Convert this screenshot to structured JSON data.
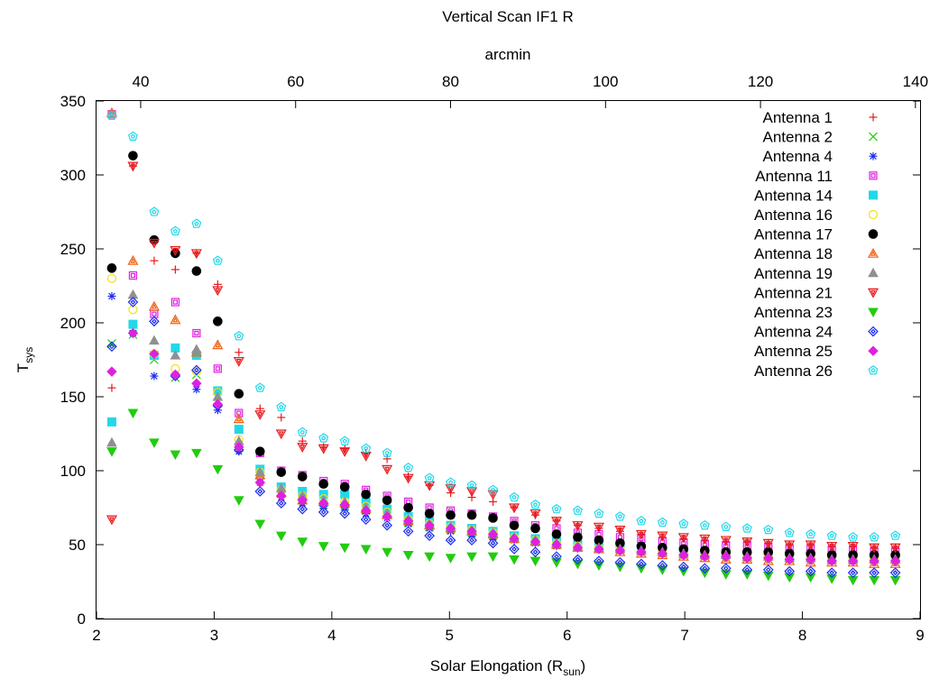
{
  "chart_data": {
    "type": "scatter",
    "title": "Vertical Scan IF1 R",
    "x2label": "arcmin",
    "xlabel_main": "Solar Elongation (R",
    "xlabel_sub": "sun",
    "xlabel_close": ")",
    "ylabel_main": "T",
    "ylabel_sub": "sys",
    "xlim": [
      2,
      9
    ],
    "ylim": [
      0,
      350
    ],
    "x2lim": [
      34.3,
      140.6
    ],
    "xticks": [
      2,
      3,
      4,
      5,
      6,
      7,
      8,
      9
    ],
    "yticks": [
      0,
      50,
      100,
      150,
      200,
      250,
      300,
      350
    ],
    "x2ticks": [
      40,
      60,
      80,
      100,
      120,
      140
    ],
    "grid": false,
    "legend_position": "top-right",
    "x": [
      2.13,
      2.31,
      2.49,
      2.67,
      2.85,
      3.03,
      3.21,
      3.39,
      3.57,
      3.75,
      3.93,
      4.11,
      4.29,
      4.47,
      4.65,
      4.83,
      5.01,
      5.19,
      5.37,
      5.55,
      5.73,
      5.91,
      6.09,
      6.27,
      6.45,
      6.63,
      6.81,
      6.99,
      7.17,
      7.35,
      7.53,
      7.71,
      7.89,
      8.07,
      8.25,
      8.43,
      8.61,
      8.79
    ],
    "series": [
      {
        "name": "Antenna 1",
        "color": "#e8191d",
        "marker": "plus",
        "values": [
          156,
          306,
          242,
          236,
          247,
          226,
          180,
          142,
          136,
          120,
          116,
          115,
          112,
          108,
          96,
          90,
          85,
          82,
          79,
          75,
          70,
          66,
          63,
          61,
          59,
          57,
          55,
          54,
          53,
          52,
          52,
          51,
          50,
          50,
          49,
          49,
          48,
          48
        ]
      },
      {
        "name": "Antenna 2",
        "color": "#22cc11",
        "marker": "x",
        "values": [
          186,
          192,
          175,
          163,
          165,
          150,
          116,
          97,
          85,
          80,
          77,
          76,
          73,
          71,
          65,
          62,
          60,
          58,
          56,
          54,
          52,
          50,
          49,
          48,
          47,
          46,
          45,
          44,
          43,
          43,
          42,
          42,
          41,
          41,
          40,
          40,
          40,
          40
        ]
      },
      {
        "name": "Antenna 4",
        "color": "#1a2cf0",
        "marker": "asterisk",
        "values": [
          218,
          193,
          164,
          165,
          155,
          141,
          113,
          92,
          82,
          78,
          76,
          75,
          71,
          68,
          64,
          61,
          59,
          57,
          55,
          53,
          51,
          49,
          48,
          47,
          46,
          45,
          44,
          43,
          42,
          42,
          41,
          41,
          40,
          40,
          39,
          39,
          39,
          39
        ]
      },
      {
        "name": "Antenna 11",
        "color": "#e020e0",
        "marker": "square-open",
        "values": [
          341,
          232,
          206,
          214,
          193,
          169,
          139,
          112,
          100,
          97,
          93,
          91,
          87,
          83,
          79,
          75,
          73,
          71,
          69,
          66,
          63,
          61,
          58,
          57,
          55,
          54,
          52,
          51,
          50,
          49,
          49,
          48,
          47,
          47,
          46,
          46,
          45,
          45
        ]
      },
      {
        "name": "Antenna 14",
        "color": "#22d8e8",
        "marker": "square-filled",
        "values": [
          133,
          199,
          178,
          183,
          178,
          154,
          128,
          101,
          89,
          86,
          84,
          84,
          79,
          74,
          69,
          66,
          63,
          61,
          59,
          56,
          54,
          52,
          50,
          49,
          48,
          47,
          46,
          45,
          44,
          44,
          43,
          43,
          42,
          42,
          41,
          41,
          41,
          41
        ]
      },
      {
        "name": "Antenna 16",
        "color": "#f2e01a",
        "marker": "circle-open",
        "values": [
          230,
          209,
          179,
          169,
          167,
          153,
          121,
          99,
          87,
          83,
          81,
          79,
          76,
          72,
          67,
          64,
          62,
          60,
          58,
          55,
          53,
          51,
          49,
          48,
          47,
          46,
          45,
          44,
          43,
          43,
          42,
          42,
          41,
          41,
          41,
          40,
          40,
          40
        ]
      },
      {
        "name": "Antenna 17",
        "color": "#000000",
        "marker": "circle-filled",
        "values": [
          237,
          313,
          256,
          247,
          235,
          201,
          152,
          113,
          99,
          96,
          91,
          89,
          84,
          80,
          75,
          71,
          70,
          70,
          68,
          63,
          61,
          57,
          55,
          53,
          51,
          49,
          48,
          47,
          46,
          45,
          45,
          45,
          44,
          44,
          43,
          43,
          43,
          43
        ]
      },
      {
        "name": "Antenna 18",
        "color": "#f06010",
        "marker": "triangle-open",
        "values": [
          342,
          242,
          211,
          202,
          180,
          185,
          135,
          97,
          85,
          80,
          79,
          78,
          74,
          70,
          66,
          63,
          61,
          59,
          57,
          54,
          52,
          50,
          48,
          47,
          45,
          44,
          43,
          42,
          41,
          40,
          40,
          39,
          39,
          38,
          38,
          38,
          37,
          37
        ]
      },
      {
        "name": "Antenna 19",
        "color": "#909090",
        "marker": "triangle-filled",
        "values": [
          119,
          219,
          188,
          178,
          182,
          150,
          120,
          99,
          88,
          83,
          80,
          79,
          75,
          71,
          67,
          64,
          62,
          60,
          58,
          55,
          53,
          51,
          49,
          48,
          47,
          46,
          45,
          44,
          43,
          43,
          42,
          42,
          41,
          41,
          40,
          40,
          40,
          40
        ]
      },
      {
        "name": "Antenna 21",
        "color": "#e8191d",
        "marker": "triangle-down-open",
        "values": [
          67,
          306,
          254,
          249,
          247,
          222,
          174,
          138,
          125,
          116,
          115,
          113,
          110,
          101,
          95,
          90,
          88,
          86,
          84,
          75,
          71,
          66,
          63,
          62,
          60,
          57,
          56,
          55,
          54,
          53,
          52,
          51,
          50,
          50,
          49,
          49,
          48,
          48
        ]
      },
      {
        "name": "Antenna 23",
        "color": "#22cc11",
        "marker": "triangle-down-filled",
        "values": [
          113,
          139,
          119,
          111,
          112,
          101,
          80,
          64,
          56,
          52,
          49,
          48,
          47,
          45,
          43,
          42,
          41,
          42,
          42,
          40,
          39,
          38,
          37,
          36,
          35,
          34,
          33,
          32,
          31,
          30,
          30,
          29,
          28,
          28,
          27,
          26,
          26,
          26
        ]
      },
      {
        "name": "Antenna 24",
        "color": "#1a2cf0",
        "marker": "diamond-open",
        "values": [
          184,
          214,
          201,
          164,
          168,
          144,
          114,
          86,
          78,
          74,
          72,
          71,
          67,
          63,
          59,
          56,
          53,
          53,
          51,
          47,
          45,
          42,
          40,
          39,
          38,
          37,
          36,
          35,
          34,
          34,
          33,
          33,
          32,
          32,
          31,
          31,
          31,
          31
        ]
      },
      {
        "name": "Antenna 25",
        "color": "#e020e0",
        "marker": "diamond-filled",
        "values": [
          167,
          193,
          179,
          165,
          159,
          145,
          116,
          92,
          83,
          80,
          78,
          77,
          73,
          69,
          66,
          63,
          61,
          59,
          57,
          54,
          52,
          50,
          48,
          47,
          46,
          45,
          44,
          43,
          42,
          42,
          41,
          41,
          40,
          40,
          39,
          39,
          39,
          39
        ]
      },
      {
        "name": "Antenna 26",
        "color": "#22d8e8",
        "marker": "pentagon-open",
        "values": [
          340,
          326,
          275,
          262,
          267,
          242,
          191,
          156,
          143,
          126,
          122,
          120,
          115,
          112,
          102,
          95,
          92,
          90,
          87,
          82,
          77,
          74,
          73,
          71,
          69,
          66,
          65,
          64,
          63,
          62,
          61,
          60,
          58,
          57,
          56,
          55,
          55,
          56
        ]
      }
    ]
  }
}
